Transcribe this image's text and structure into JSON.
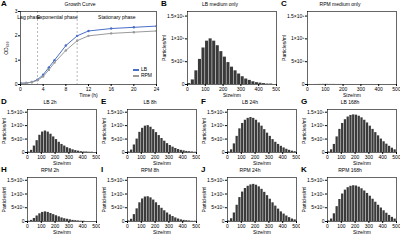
{
  "chart_data": [
    {
      "type": "line",
      "panel_label": "A",
      "title": "Growth Curve",
      "x": [
        0,
        1,
        2,
        3,
        4,
        5,
        6,
        8,
        10,
        12,
        16,
        20,
        24
      ],
      "series": [
        {
          "name": "LB",
          "color": "#4a6fc7",
          "values": [
            0.05,
            0.06,
            0.1,
            0.2,
            0.4,
            0.7,
            1.0,
            1.6,
            2.0,
            2.2,
            2.3,
            2.35,
            2.4
          ]
        },
        {
          "name": "RPM",
          "color": "#9a9a9a",
          "values": [
            0.05,
            0.06,
            0.09,
            0.17,
            0.33,
            0.6,
            0.9,
            1.4,
            1.8,
            2.0,
            2.1,
            2.15,
            2.2
          ]
        }
      ],
      "boundaries": [
        3,
        10
      ],
      "annotations": [
        {
          "text": "Lag phase",
          "x": 1.5,
          "y": 2.75
        },
        {
          "text": "Exponential phase",
          "x": 6.5,
          "y": 2.75
        },
        {
          "text": "Stationary phase",
          "x": 17,
          "y": 2.75
        }
      ],
      "x_label": "Time (h)",
      "y_label": "OD₆₀₀",
      "xlim": [
        0,
        24
      ],
      "xticks": [
        0,
        4,
        8,
        12,
        16,
        20,
        24
      ],
      "ylim": [
        0,
        3
      ],
      "yticks": [
        0,
        1,
        2,
        3
      ],
      "marker": "circle",
      "legend": "bottom-right"
    },
    {
      "type": "histogram",
      "panel_label": "B",
      "title": "LB medium only",
      "color": "#3a3a3a",
      "bins": [
        0,
        20,
        40,
        60,
        80,
        100,
        120,
        140,
        160,
        180,
        200,
        220,
        240,
        260,
        280,
        300,
        320,
        340,
        360,
        380,
        400,
        420,
        440,
        460,
        480,
        500
      ],
      "counts": [
        20000000.0,
        100000000.0,
        300000000.0,
        550000000.0,
        800000000.0,
        950000000.0,
        1000000000.0,
        950000000.0,
        850000000.0,
        720000000.0,
        600000000.0,
        480000000.0,
        380000000.0,
        300000000.0,
        230000000.0,
        170000000.0,
        120000000.0,
        90000000.0,
        60000000.0,
        40000000.0,
        30000000.0,
        20000000.0,
        10000000.0,
        10000000.0,
        0
      ],
      "x_label": "Size/nm",
      "y_label": "Particles/ml",
      "xlim": [
        0,
        500
      ],
      "xticks": [
        0,
        100,
        200,
        300,
        400,
        500
      ],
      "ylim": [
        0,
        1600000000
      ],
      "yticks": [
        0,
        {
          "value": 500000000,
          "label": "5×10⁸"
        },
        {
          "value": 1000000000,
          "label": "1×10⁹"
        },
        {
          "value": 1500000000,
          "label": "1.5×10⁹"
        }
      ]
    },
    {
      "type": "histogram",
      "panel_label": "C",
      "title": "RPM medium only",
      "color": "#3a3a3a",
      "bins": [
        0,
        20,
        40,
        60,
        80,
        100,
        120,
        140,
        160,
        180,
        200,
        220,
        240,
        260,
        280,
        300,
        320,
        340,
        360,
        380,
        400,
        420,
        440,
        460,
        480,
        500
      ],
      "counts": [
        0,
        0,
        1000000.0,
        2000000.0,
        3000000.0,
        3000000.0,
        2000000.0,
        2000000.0,
        1000000.0,
        1000000.0,
        0,
        0,
        0,
        0,
        0,
        0,
        0,
        0,
        0,
        0,
        0,
        0,
        0,
        0,
        0
      ],
      "x_label": "Size/nm",
      "y_label": "Particles/ml",
      "xlim": [
        0,
        500
      ],
      "xticks": [
        0,
        100,
        200,
        300,
        400,
        500
      ],
      "ylim": [
        0,
        1600000000
      ],
      "yticks": [
        0,
        {
          "value": 500000000,
          "label": "5×10⁸"
        },
        {
          "value": 1000000000,
          "label": "1×10⁹"
        },
        {
          "value": 1500000000,
          "label": "1.5×10⁹"
        }
      ]
    },
    {
      "type": "histogram",
      "panel_label": "D",
      "title": "LB 2h",
      "color": "#3a3a3a",
      "bins": [
        0,
        20,
        40,
        60,
        80,
        100,
        120,
        140,
        160,
        180,
        200,
        220,
        240,
        260,
        280,
        300,
        320,
        340,
        360,
        380,
        400,
        420,
        440,
        460,
        480,
        500
      ],
      "counts": [
        16000000.0,
        80000000.0,
        240000000.0,
        440000000.0,
        640000000.0,
        760000000.0,
        800000000.0,
        760000000.0,
        680000000.0,
        580000000.0,
        480000000.0,
        380000000.0,
        300000000.0,
        240000000.0,
        180000000.0,
        140000000.0,
        100000000.0,
        70000000.0,
        50000000.0,
        30000000.0,
        20000000.0,
        20000000.0,
        10000000.0,
        10000000.0,
        0
      ],
      "x_label": "Size/nm",
      "y_label": "Particles/ml",
      "xlim": [
        0,
        500
      ],
      "xticks": [
        0,
        100,
        200,
        300,
        400,
        500
      ],
      "ylim": [
        0,
        1600000000
      ],
      "yticks": [
        0,
        {
          "value": 500000000,
          "label": "5×10⁸"
        },
        {
          "value": 1000000000,
          "label": "1×10⁹"
        },
        {
          "value": 1500000000,
          "label": "1.5×10⁹"
        }
      ]
    },
    {
      "type": "histogram",
      "panel_label": "E",
      "title": "LB 8h",
      "color": "#3a3a3a",
      "bins": [
        0,
        20,
        40,
        60,
        80,
        100,
        120,
        140,
        160,
        180,
        200,
        220,
        240,
        260,
        280,
        300,
        320,
        340,
        360,
        380,
        400,
        420,
        440,
        460,
        480,
        500
      ],
      "counts": [
        20000000.0,
        90000000.0,
        280000000.0,
        500000000.0,
        750000000.0,
        900000000.0,
        980000000.0,
        1000000000.0,
        940000000.0,
        850000000.0,
        740000000.0,
        630000000.0,
        520000000.0,
        420000000.0,
        330000000.0,
        260000000.0,
        200000000.0,
        150000000.0,
        110000000.0,
        80000000.0,
        60000000.0,
        40000000.0,
        30000000.0,
        20000000.0,
        10000000.0
      ],
      "x_label": "Size/nm",
      "y_label": "Particles/ml",
      "xlim": [
        0,
        500
      ],
      "xticks": [
        0,
        100,
        200,
        300,
        400,
        500
      ],
      "ylim": [
        0,
        1600000000
      ],
      "yticks": [
        0,
        {
          "value": 500000000,
          "label": "5×10⁸"
        },
        {
          "value": 1000000000,
          "label": "1×10⁹"
        },
        {
          "value": 1500000000,
          "label": "1.5×10⁹"
        }
      ]
    },
    {
      "type": "histogram",
      "panel_label": "F",
      "title": "LB 24h",
      "color": "#3a3a3a",
      "bins": [
        0,
        20,
        40,
        60,
        80,
        100,
        120,
        140,
        160,
        180,
        200,
        220,
        240,
        260,
        280,
        300,
        320,
        340,
        360,
        380,
        400,
        420,
        440,
        460,
        480,
        500
      ],
      "counts": [
        20000000.0,
        100000000.0,
        320000000.0,
        600000000.0,
        880000000.0,
        1080000000.0,
        1200000000.0,
        1270000000.0,
        1300000000.0,
        1270000000.0,
        1200000000.0,
        1100000000.0,
        980000000.0,
        850000000.0,
        720000000.0,
        600000000.0,
        480000000.0,
        380000000.0,
        300000000.0,
        230000000.0,
        170000000.0,
        120000000.0,
        80000000.0,
        50000000.0,
        30000000.0
      ],
      "x_label": "Size/nm",
      "y_label": "Particles/ml",
      "xlim": [
        0,
        500
      ],
      "xticks": [
        0,
        100,
        200,
        300,
        400,
        500
      ],
      "ylim": [
        0,
        1600000000
      ],
      "yticks": [
        0,
        {
          "value": 500000000,
          "label": "5×10⁸"
        },
        {
          "value": 1000000000,
          "label": "1×10⁹"
        },
        {
          "value": 1500000000,
          "label": "1.5×10⁹"
        }
      ]
    },
    {
      "type": "histogram",
      "panel_label": "G",
      "title": "LB 168h",
      "color": "#3a3a3a",
      "bins": [
        0,
        20,
        40,
        60,
        80,
        100,
        120,
        140,
        160,
        180,
        200,
        220,
        240,
        260,
        280,
        300,
        320,
        340,
        360,
        380,
        400,
        420,
        440,
        460,
        480,
        500
      ],
      "counts": [
        20000000.0,
        100000000.0,
        300000000.0,
        580000000.0,
        860000000.0,
        1080000000.0,
        1220000000.0,
        1320000000.0,
        1380000000.0,
        1400000000.0,
        1390000000.0,
        1350000000.0,
        1290000000.0,
        1200000000.0,
        1100000000.0,
        980000000.0,
        860000000.0,
        740000000.0,
        620000000.0,
        500000000.0,
        400000000.0,
        310000000.0,
        230000000.0,
        160000000.0,
        100000000.0
      ],
      "x_label": "Size/nm",
      "y_label": "Particles/ml",
      "xlim": [
        0,
        500
      ],
      "xticks": [
        0,
        100,
        200,
        300,
        400,
        500
      ],
      "ylim": [
        0,
        1600000000
      ],
      "yticks": [
        0,
        {
          "value": 500000000,
          "label": "5×10⁸"
        },
        {
          "value": 1000000000,
          "label": "1×10⁹"
        },
        {
          "value": 1500000000,
          "label": "1.5×10⁹"
        }
      ]
    },
    {
      "type": "histogram",
      "panel_label": "H",
      "title": "RPM 2h",
      "color": "#3a3a3a",
      "bins": [
        0,
        20,
        40,
        60,
        80,
        100,
        120,
        140,
        160,
        180,
        200,
        220,
        240,
        260,
        280,
        300,
        320,
        340,
        360,
        380,
        400,
        420,
        440,
        460,
        480,
        500
      ],
      "counts": [
        10000000.0,
        40000000.0,
        110000000.0,
        200000000.0,
        280000000.0,
        330000000.0,
        350000000.0,
        330000000.0,
        290000000.0,
        250000000.0,
        210000000.0,
        170000000.0,
        130000000.0,
        100000000.0,
        80000000.0,
        60000000.0,
        40000000.0,
        30000000.0,
        20000000.0,
        10000000.0,
        10000000.0,
        0,
        0,
        0,
        0
      ],
      "x_label": "Size/nm",
      "y_label": "Particles/ml",
      "xlim": [
        0,
        500
      ],
      "xticks": [
        0,
        100,
        200,
        300,
        400,
        500
      ],
      "ylim": [
        0,
        1600000000
      ],
      "yticks": [
        0,
        {
          "value": 500000000,
          "label": "5×10⁸"
        },
        {
          "value": 1000000000,
          "label": "1×10⁹"
        },
        {
          "value": 1500000000,
          "label": "1.5×10⁹"
        }
      ]
    },
    {
      "type": "histogram",
      "panel_label": "I",
      "title": "RPM 8h",
      "color": "#3a3a3a",
      "bins": [
        0,
        20,
        40,
        60,
        80,
        100,
        120,
        140,
        160,
        180,
        200,
        220,
        240,
        260,
        280,
        300,
        320,
        340,
        360,
        380,
        400,
        420,
        440,
        460,
        480,
        500
      ],
      "counts": [
        20000000.0,
        80000000.0,
        250000000.0,
        460000000.0,
        680000000.0,
        820000000.0,
        890000000.0,
        900000000.0,
        860000000.0,
        780000000.0,
        680000000.0,
        580000000.0,
        480000000.0,
        390000000.0,
        310000000.0,
        240000000.0,
        180000000.0,
        130000000.0,
        90000000.0,
        60000000.0,
        40000000.0,
        30000000.0,
        20000000.0,
        10000000.0,
        10000000.0
      ],
      "x_label": "Size/nm",
      "y_label": "Particles/ml",
      "xlim": [
        0,
        500
      ],
      "xticks": [
        0,
        100,
        200,
        300,
        400,
        500
      ],
      "ylim": [
        0,
        1600000000
      ],
      "yticks": [
        0,
        {
          "value": 500000000,
          "label": "5×10⁸"
        },
        {
          "value": 1000000000,
          "label": "1×10⁹"
        },
        {
          "value": 1500000000,
          "label": "1.5×10⁹"
        }
      ]
    },
    {
      "type": "histogram",
      "panel_label": "J",
      "title": "RPM 24h",
      "color": "#3a3a3a",
      "bins": [
        0,
        20,
        40,
        60,
        80,
        100,
        120,
        140,
        160,
        180,
        200,
        220,
        240,
        260,
        280,
        300,
        320,
        340,
        360,
        380,
        400,
        420,
        440,
        460,
        480,
        500
      ],
      "counts": [
        20000000.0,
        100000000.0,
        310000000.0,
        590000000.0,
        870000000.0,
        1070000000.0,
        1200000000.0,
        1280000000.0,
        1330000000.0,
        1350000000.0,
        1320000000.0,
        1260000000.0,
        1170000000.0,
        1060000000.0,
        940000000.0,
        810000000.0,
        680000000.0,
        560000000.0,
        450000000.0,
        350000000.0,
        270000000.0,
        200000000.0,
        140000000.0,
        90000000.0,
        60000000.0
      ],
      "x_label": "Size/nm",
      "y_label": "Particles/ml",
      "xlim": [
        0,
        500
      ],
      "xticks": [
        0,
        100,
        200,
        300,
        400,
        500
      ],
      "ylim": [
        0,
        1600000000
      ],
      "yticks": [
        0,
        {
          "value": 500000000,
          "label": "5×10⁸"
        },
        {
          "value": 1000000000,
          "label": "1×10⁹"
        },
        {
          "value": 1500000000,
          "label": "1.5×10⁹"
        }
      ]
    },
    {
      "type": "histogram",
      "panel_label": "K",
      "title": "RPM 168h",
      "color": "#3a3a3a",
      "bins": [
        0,
        20,
        40,
        60,
        80,
        100,
        120,
        140,
        160,
        180,
        200,
        220,
        240,
        260,
        280,
        300,
        320,
        340,
        360,
        380,
        400,
        420,
        440,
        460,
        480,
        500
      ],
      "counts": [
        20000000.0,
        90000000.0,
        280000000.0,
        540000000.0,
        800000000.0,
        1000000000.0,
        1140000000.0,
        1230000000.0,
        1280000000.0,
        1300000000.0,
        1290000000.0,
        1250000000.0,
        1190000000.0,
        1110000000.0,
        1020000000.0,
        920000000.0,
        810000000.0,
        700000000.0,
        590000000.0,
        490000000.0,
        390000000.0,
        300000000.0,
        220000000.0,
        150000000.0,
        90000000.0
      ],
      "x_label": "Size/nm",
      "y_label": "Particles/ml",
      "xlim": [
        0,
        500
      ],
      "xticks": [
        0,
        100,
        200,
        300,
        400,
        500
      ],
      "ylim": [
        0,
        1600000000
      ],
      "yticks": [
        0,
        {
          "value": 500000000,
          "label": "5×10⁸"
        },
        {
          "value": 1000000000,
          "label": "1×10⁹"
        },
        {
          "value": 1500000000,
          "label": "1.5×10⁹"
        }
      ]
    }
  ]
}
